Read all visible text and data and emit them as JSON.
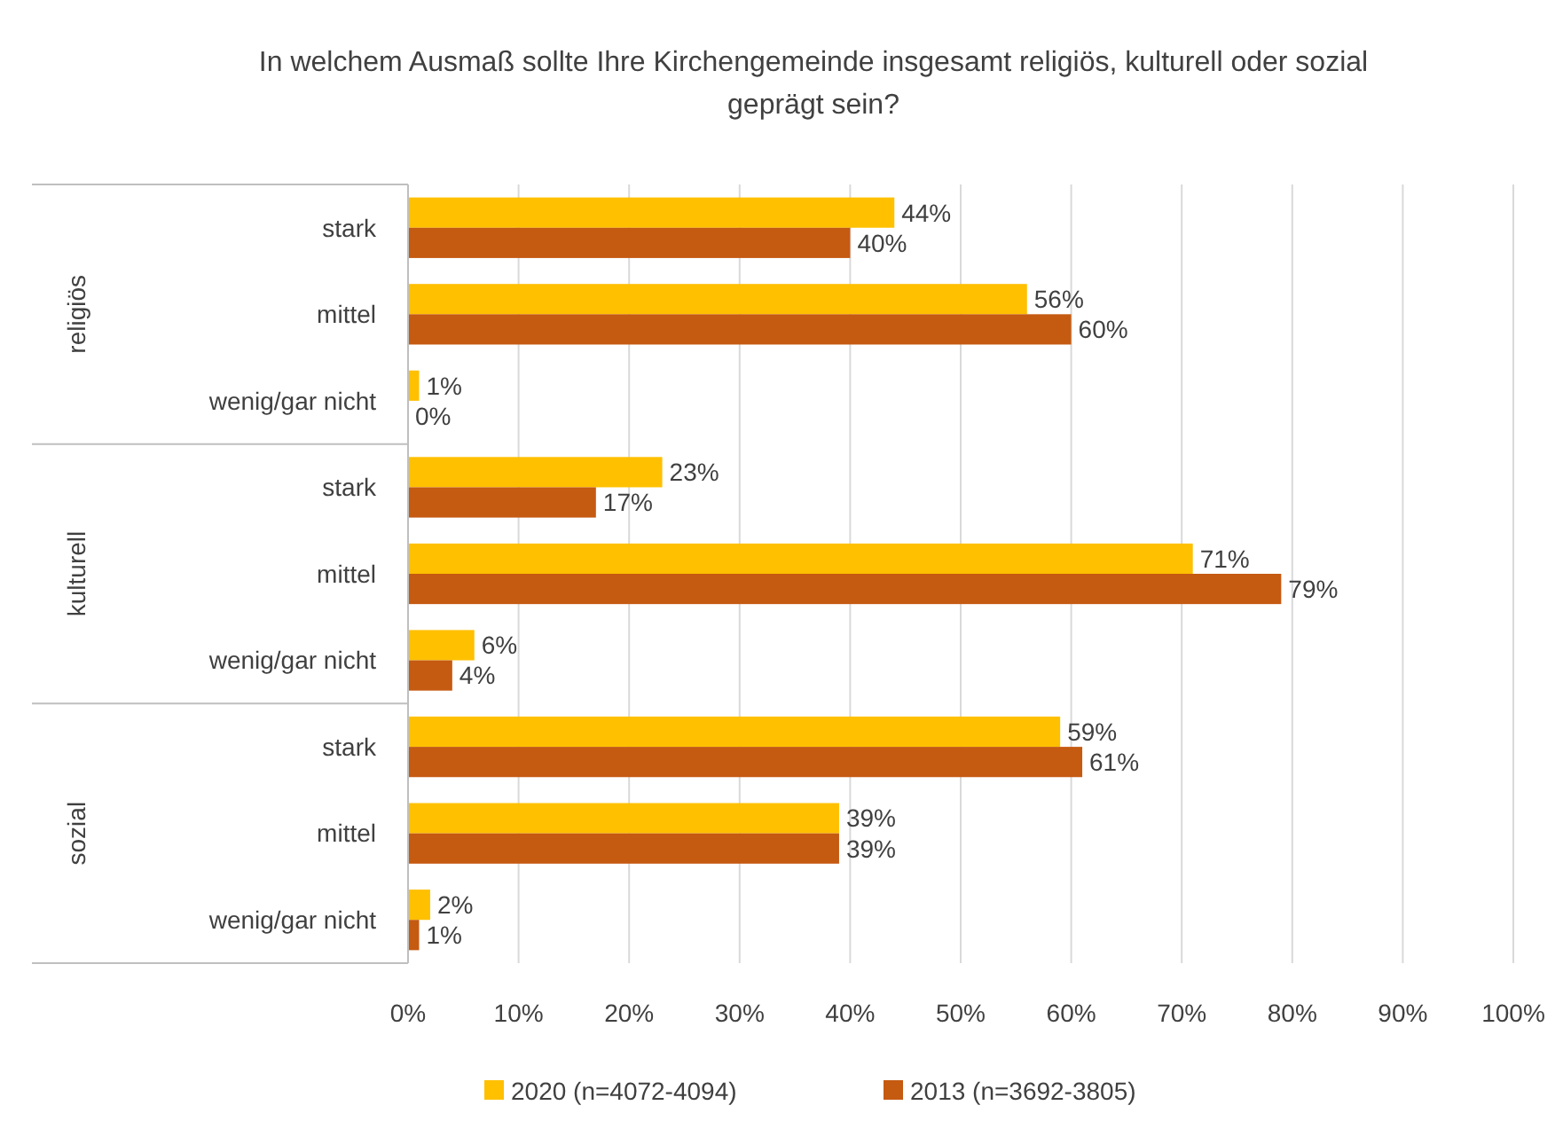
{
  "chart_data": {
    "type": "bar",
    "orientation": "horizontal",
    "title": "In welchem Ausmaß sollte Ihre Kirchengemeinde insgesamt religiös, kulturell oder sozial geprägt sein?",
    "categories": [
      "stark",
      "mittel",
      "wenig/gar nicht",
      "stark",
      "mittel",
      "wenig/gar nicht",
      "stark",
      "mittel",
      "wenig/gar nicht"
    ],
    "annotations": [
      "religiös",
      "kulturell",
      "sozial"
    ],
    "series": [
      {
        "name": "2020 (n=4072-4094)",
        "color": "#ffc000",
        "values": [
          44,
          56,
          1,
          23,
          71,
          6,
          59,
          39,
          2
        ],
        "value_labels": [
          "44%",
          "56%",
          "1%",
          "23%",
          "71%",
          "6%",
          "59%",
          "39%",
          "2%"
        ]
      },
      {
        "name": "2013 (n=3692-3805)",
        "color": "#c55a11",
        "values": [
          40,
          60,
          0,
          17,
          79,
          4,
          61,
          39,
          1
        ],
        "value_labels": [
          "40%",
          "60%",
          "0%",
          "17%",
          "79%",
          "4%",
          "61%",
          "39%",
          "1%"
        ]
      }
    ],
    "xlim": [
      0,
      100
    ],
    "xticks": [
      {
        "value": 0,
        "label": "0%"
      },
      {
        "value": 10,
        "label": "10%"
      },
      {
        "value": 20,
        "label": "20%"
      },
      {
        "value": 30,
        "label": "30%"
      },
      {
        "value": 40,
        "label": "40%"
      },
      {
        "value": 50,
        "label": "50%"
      },
      {
        "value": 60,
        "label": "60%"
      },
      {
        "value": 70,
        "label": "70%"
      },
      {
        "value": 80,
        "label": "80%"
      },
      {
        "value": 90,
        "label": "90%"
      },
      {
        "value": 100,
        "label": "100%"
      }
    ],
    "grid": "x",
    "legend": "bottom"
  }
}
